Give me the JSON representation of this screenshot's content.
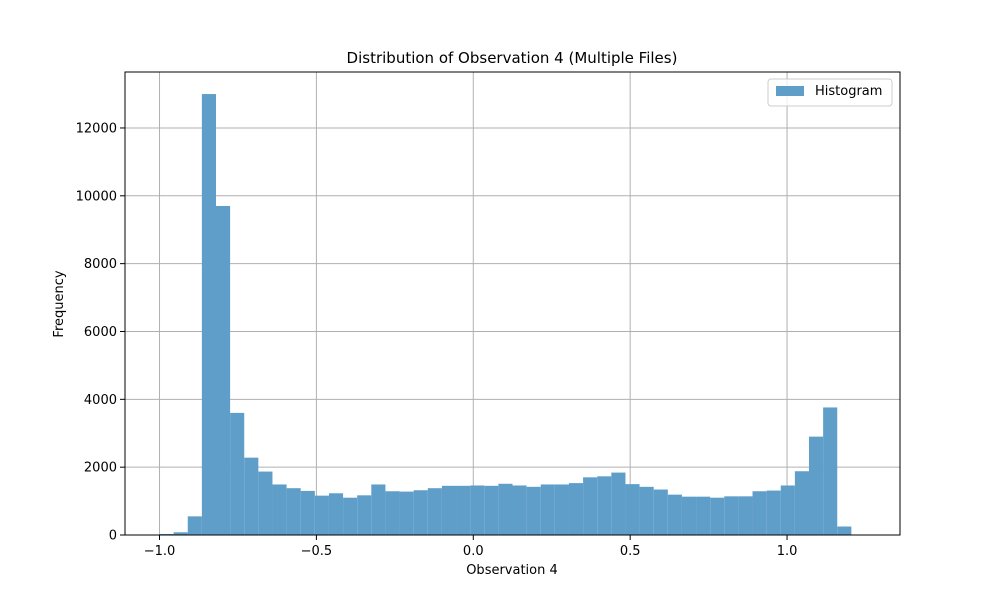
{
  "chart_data": {
    "type": "bar",
    "title": "Distribution of Observation 4 (Multiple Files)",
    "xlabel": "Observation 4",
    "ylabel": "Frequency",
    "xlim": [
      -1.11,
      1.36
    ],
    "ylim": [
      0,
      13650
    ],
    "grid": true,
    "legend_position": "top-right",
    "x_ticks": [
      -1.0,
      -0.5,
      0.0,
      0.5,
      1.0
    ],
    "x_tick_labels": [
      "−1.0",
      "−0.5",
      "0.0",
      "0.5",
      "1.0"
    ],
    "y_ticks": [
      0,
      2000,
      4000,
      6000,
      8000,
      10000,
      12000
    ],
    "y_tick_labels": [
      "0",
      "2000",
      "4000",
      "6000",
      "8000",
      "10000",
      "12000"
    ],
    "bin_edges": [
      -1.0,
      -0.955,
      -0.91,
      -0.865,
      -0.82,
      -0.775,
      -0.73,
      -0.685,
      -0.64,
      -0.595,
      -0.55,
      -0.505,
      -0.46,
      -0.415,
      -0.37,
      -0.325,
      -0.28,
      -0.235,
      -0.19,
      -0.145,
      -0.1,
      -0.055,
      -0.01,
      0.035,
      0.08,
      0.125,
      0.17,
      0.215,
      0.26,
      0.305,
      0.35,
      0.395,
      0.44,
      0.485,
      0.53,
      0.575,
      0.62,
      0.665,
      0.71,
      0.755,
      0.8,
      0.845,
      0.89,
      0.935,
      0.98,
      1.025,
      1.07,
      1.115,
      1.16,
      1.205
    ],
    "series": [
      {
        "name": "Histogram",
        "color": "#5f9ec9",
        "values": [
          30,
          80,
          550,
          13000,
          9700,
          3600,
          2280,
          1870,
          1490,
          1380,
          1300,
          1160,
          1230,
          1100,
          1170,
          1490,
          1290,
          1280,
          1320,
          1380,
          1450,
          1450,
          1460,
          1450,
          1510,
          1460,
          1420,
          1490,
          1490,
          1530,
          1700,
          1730,
          1840,
          1500,
          1420,
          1340,
          1190,
          1130,
          1130,
          1100,
          1140,
          1140,
          1290,
          1310,
          1460,
          1880,
          2900,
          3760,
          250
        ]
      }
    ]
  }
}
